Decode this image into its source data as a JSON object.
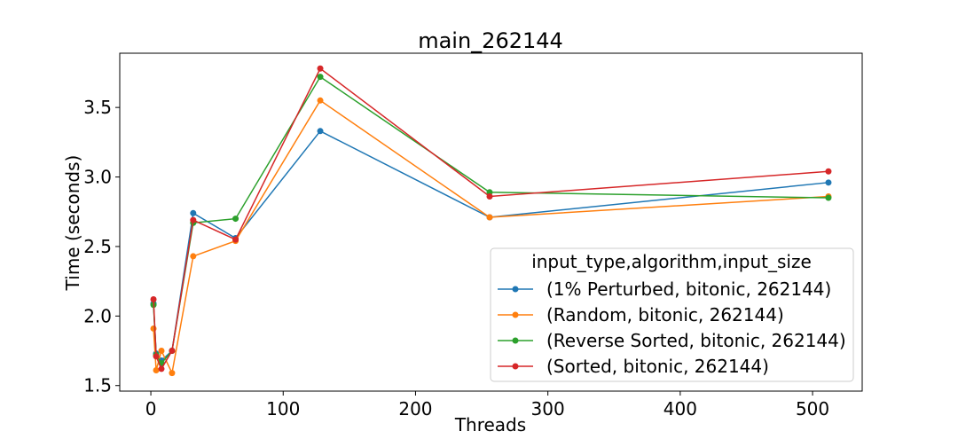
{
  "chart_data": {
    "type": "line",
    "title": "main_262144",
    "xlabel": "Threads",
    "ylabel": "Time (seconds)",
    "xlim": [
      -23.5,
      537.5
    ],
    "ylim": [
      1.46,
      3.89
    ],
    "xticks": [
      0,
      100,
      200,
      300,
      400,
      500
    ],
    "xtick_labels": [
      "0",
      "100",
      "200",
      "300",
      "400",
      "500"
    ],
    "yticks": [
      1.5,
      2.0,
      2.5,
      3.0,
      3.5
    ],
    "ytick_labels": [
      "1.5",
      "2.0",
      "2.5",
      "3.0",
      "3.5"
    ],
    "grid": false,
    "legend": {
      "title": "input_type,algorithm,input_size",
      "position": "lower-right"
    },
    "x": [
      2,
      4,
      8,
      16,
      32,
      64,
      128,
      256,
      512
    ],
    "series": [
      {
        "name": "(1% Perturbed, bitonic, 262144)",
        "color": "#1f77b4",
        "values": [
          2.09,
          1.73,
          1.68,
          1.75,
          2.74,
          2.56,
          3.33,
          2.71,
          2.96
        ]
      },
      {
        "name": "(Random, bitonic, 262144)",
        "color": "#ff7f0e",
        "values": [
          1.91,
          1.61,
          1.75,
          1.59,
          2.43,
          2.54,
          3.55,
          2.71,
          2.86
        ]
      },
      {
        "name": "(Reverse Sorted, bitonic, 262144)",
        "color": "#2ca02c",
        "values": [
          2.08,
          1.72,
          1.66,
          1.75,
          2.67,
          2.7,
          3.72,
          2.89,
          2.85
        ]
      },
      {
        "name": "(Sorted, bitonic, 262144)",
        "color": "#d62728",
        "values": [
          2.12,
          1.71,
          1.62,
          1.75,
          2.69,
          2.55,
          3.78,
          2.86,
          3.04
        ]
      }
    ]
  }
}
